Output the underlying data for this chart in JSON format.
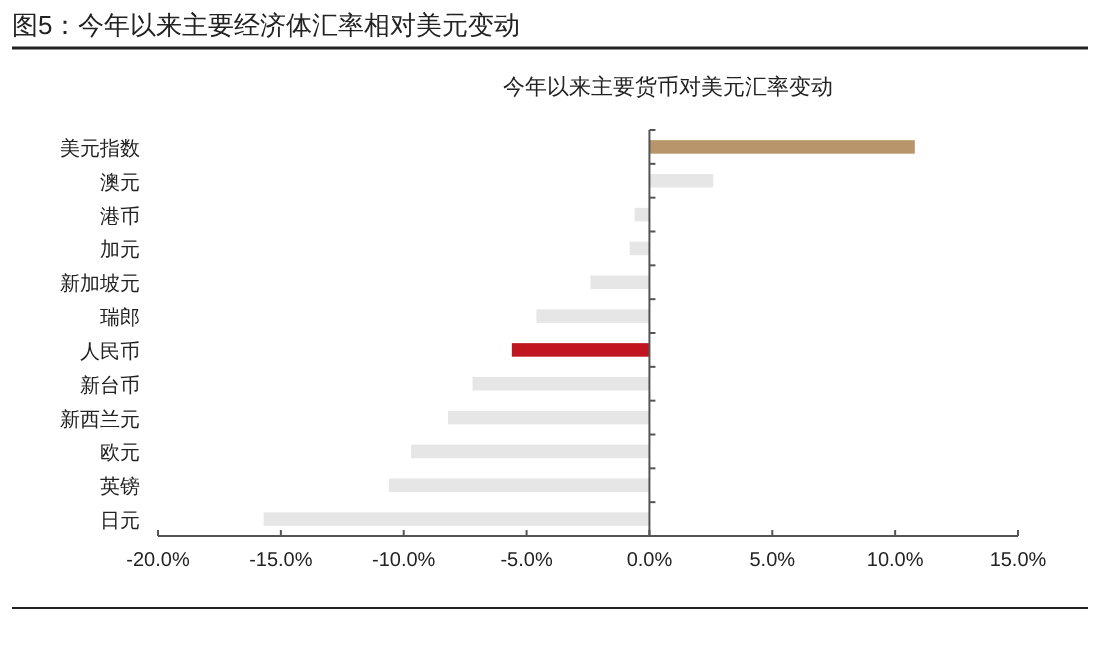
{
  "chart_data": {
    "type": "bar",
    "orientation": "horizontal",
    "title": "图5：今年以来主要经济体汇率相对美元变动",
    "subtitle": "今年以来主要货币对美元汇率变动",
    "categories": [
      "美元指数",
      "澳元",
      "港币",
      "加元",
      "新加坡元",
      "瑞郎",
      "人民币",
      "新台币",
      "新西兰元",
      "欧元",
      "英镑",
      "日元"
    ],
    "values": [
      10.8,
      2.6,
      -0.6,
      -0.8,
      -2.4,
      -4.6,
      -5.6,
      -7.2,
      -8.2,
      -9.7,
      -10.6,
      -15.7
    ],
    "colors": [
      "#b8956a",
      "#e6e6e6",
      "#e6e6e6",
      "#e6e6e6",
      "#e6e6e6",
      "#e6e6e6",
      "#c0141e",
      "#e6e6e6",
      "#e6e6e6",
      "#e6e6e6",
      "#e6e6e6",
      "#e6e6e6"
    ],
    "xlim": [
      -20,
      15
    ],
    "xticks": [
      {
        "value": -20,
        "label": "-20.0%"
      },
      {
        "value": -15,
        "label": "-15.0%"
      },
      {
        "value": -10,
        "label": "-10.0%"
      },
      {
        "value": -5,
        "label": "-5.0%"
      },
      {
        "value": 0,
        "label": "0.0%"
      },
      {
        "value": 5,
        "label": "5.0%"
      },
      {
        "value": 10,
        "label": "10.0%"
      },
      {
        "value": 15,
        "label": "15.0%"
      }
    ],
    "data_labels": false
  }
}
